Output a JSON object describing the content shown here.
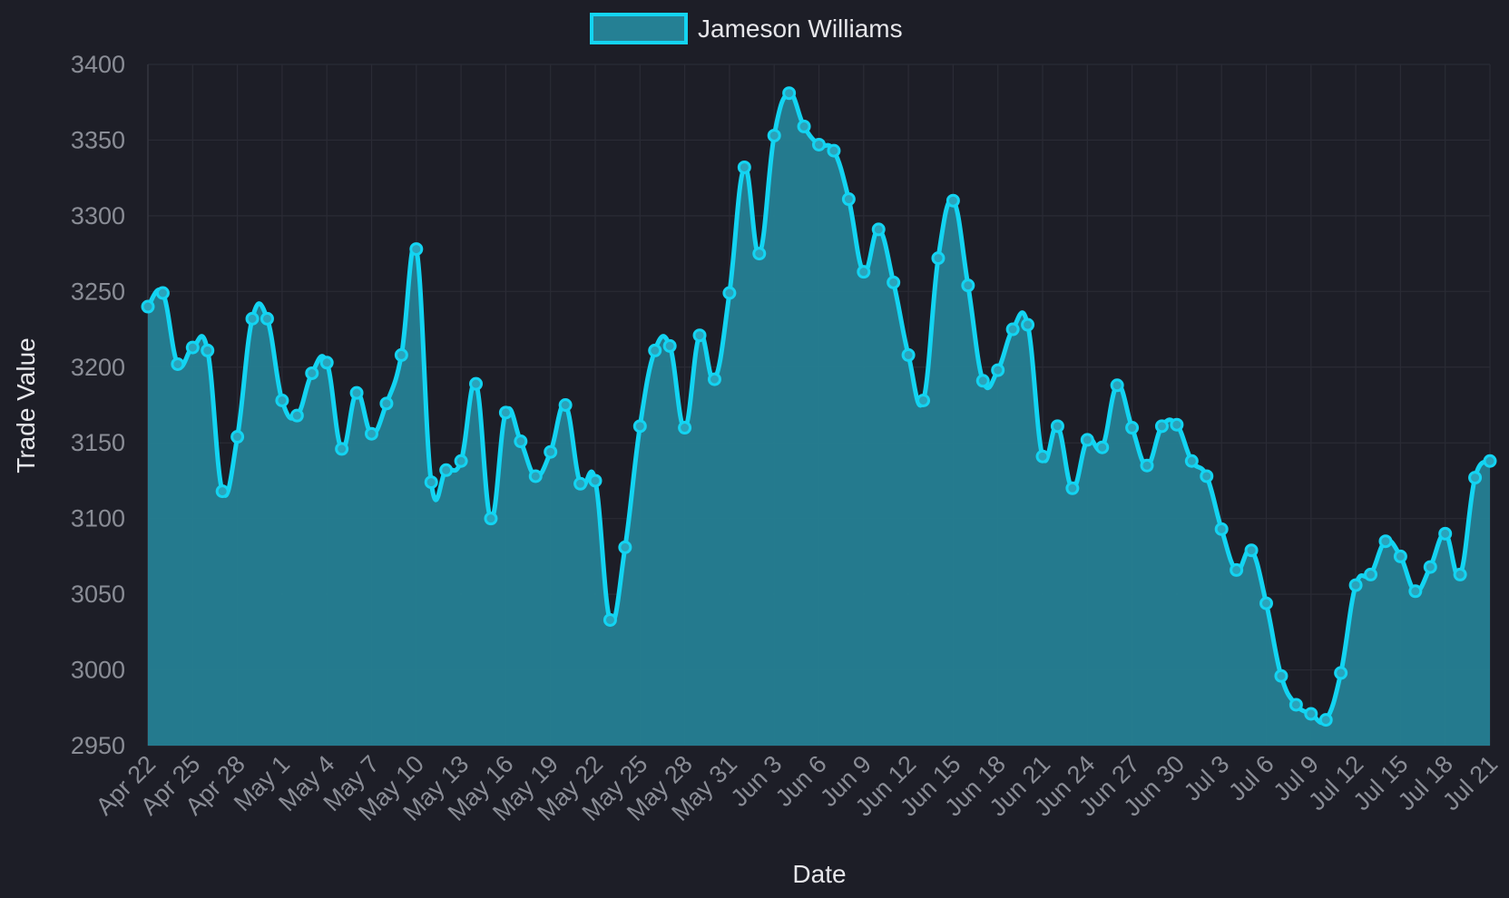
{
  "chart_data": {
    "type": "area",
    "xlabel": "Date",
    "ylabel": "Trade Value",
    "ylim": [
      2950,
      3400
    ],
    "y_ticks": [
      2950,
      3000,
      3050,
      3100,
      3150,
      3200,
      3250,
      3300,
      3350,
      3400
    ],
    "x_tick_labels": [
      "Apr 22",
      "Apr 25",
      "Apr 28",
      "May 1",
      "May 4",
      "May 7",
      "May 10",
      "May 13",
      "May 16",
      "May 19",
      "May 22",
      "May 25",
      "May 28",
      "May 31",
      "Jun 3",
      "Jun 6",
      "Jun 9",
      "Jun 12",
      "Jun 15",
      "Jun 18",
      "Jun 21",
      "Jun 24",
      "Jun 27",
      "Jun 30",
      "Jul 3",
      "Jul 6",
      "Jul 9",
      "Jul 12",
      "Jul 15",
      "Jul 18",
      "Jul 21"
    ],
    "grid": true,
    "legend_position": "top",
    "colors": {
      "line": "#13d4f2",
      "fill": "#258094",
      "background": "#1d1e27"
    },
    "series": [
      {
        "name": "Jameson Williams",
        "x": [
          "Apr 22",
          "Apr 23",
          "Apr 24",
          "Apr 25",
          "Apr 26",
          "Apr 27",
          "Apr 28",
          "Apr 29",
          "Apr 30",
          "May 1",
          "May 2",
          "May 3",
          "May 4",
          "May 5",
          "May 6",
          "May 7",
          "May 8",
          "May 9",
          "May 10",
          "May 11",
          "May 12",
          "May 13",
          "May 14",
          "May 15",
          "May 16",
          "May 17",
          "May 18",
          "May 19",
          "May 20",
          "May 21",
          "May 22",
          "May 23",
          "May 24",
          "May 25",
          "May 26",
          "May 27",
          "May 28",
          "May 29",
          "May 30",
          "May 31",
          "Jun 1",
          "Jun 2",
          "Jun 3",
          "Jun 4",
          "Jun 5",
          "Jun 6",
          "Jun 7",
          "Jun 8",
          "Jun 9",
          "Jun 10",
          "Jun 11",
          "Jun 12",
          "Jun 13",
          "Jun 14",
          "Jun 15",
          "Jun 16",
          "Jun 17",
          "Jun 18",
          "Jun 19",
          "Jun 20",
          "Jun 21",
          "Jun 22",
          "Jun 23",
          "Jun 24",
          "Jun 25",
          "Jun 26",
          "Jun 27",
          "Jun 28",
          "Jun 29",
          "Jun 30",
          "Jul 1",
          "Jul 2",
          "Jul 3",
          "Jul 4",
          "Jul 5",
          "Jul 6",
          "Jul 7",
          "Jul 8",
          "Jul 9",
          "Jul 10",
          "Jul 11",
          "Jul 12",
          "Jul 13",
          "Jul 14",
          "Jul 15",
          "Jul 16",
          "Jul 17",
          "Jul 18",
          "Jul 19",
          "Jul 20",
          "Jul 21"
        ],
        "values": [
          3240,
          3249,
          3202,
          3213,
          3211,
          3118,
          3154,
          3232,
          3232,
          3178,
          3168,
          3196,
          3203,
          3146,
          3183,
          3156,
          3176,
          3208,
          3278,
          3124,
          3132,
          3138,
          3189,
          3100,
          3170,
          3151,
          3128,
          3144,
          3175,
          3123,
          3125,
          3033,
          3081,
          3161,
          3211,
          3214,
          3160,
          3221,
          3192,
          3249,
          3332,
          3275,
          3353,
          3381,
          3359,
          3347,
          3343,
          3311,
          3263,
          3291,
          3256,
          3208,
          3178,
          3272,
          3310,
          3254,
          3191,
          3198,
          3225,
          3228,
          3141,
          3161,
          3120,
          3152,
          3147,
          3188,
          3160,
          3135,
          3161,
          3162,
          3138,
          3128,
          3093,
          3066,
          3079,
          3044,
          2996,
          2977,
          2971,
          2967,
          2998,
          3056,
          3063,
          3085,
          3075,
          3052,
          3068,
          3090,
          3063,
          3127,
          3138
        ]
      }
    ]
  }
}
